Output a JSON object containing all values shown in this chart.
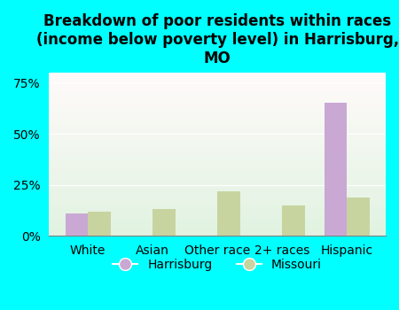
{
  "title": "Breakdown of poor residents within races\n(income below poverty level) in Harrisburg,\nMO",
  "categories": [
    "White",
    "Asian",
    "Other race",
    "2+ races",
    "Hispanic"
  ],
  "harrisburg_values": [
    11,
    0,
    0,
    0,
    65
  ],
  "missouri_values": [
    12,
    13,
    22,
    15,
    19
  ],
  "harrisburg_color": "#c9a8d4",
  "missouri_color": "#c8d4a0",
  "bg_color": "#00ffff",
  "yticks": [
    0,
    25,
    50,
    75
  ],
  "ylim": [
    0,
    80
  ],
  "bar_width": 0.35,
  "title_fontsize": 12,
  "axis_fontsize": 10,
  "legend_fontsize": 10
}
